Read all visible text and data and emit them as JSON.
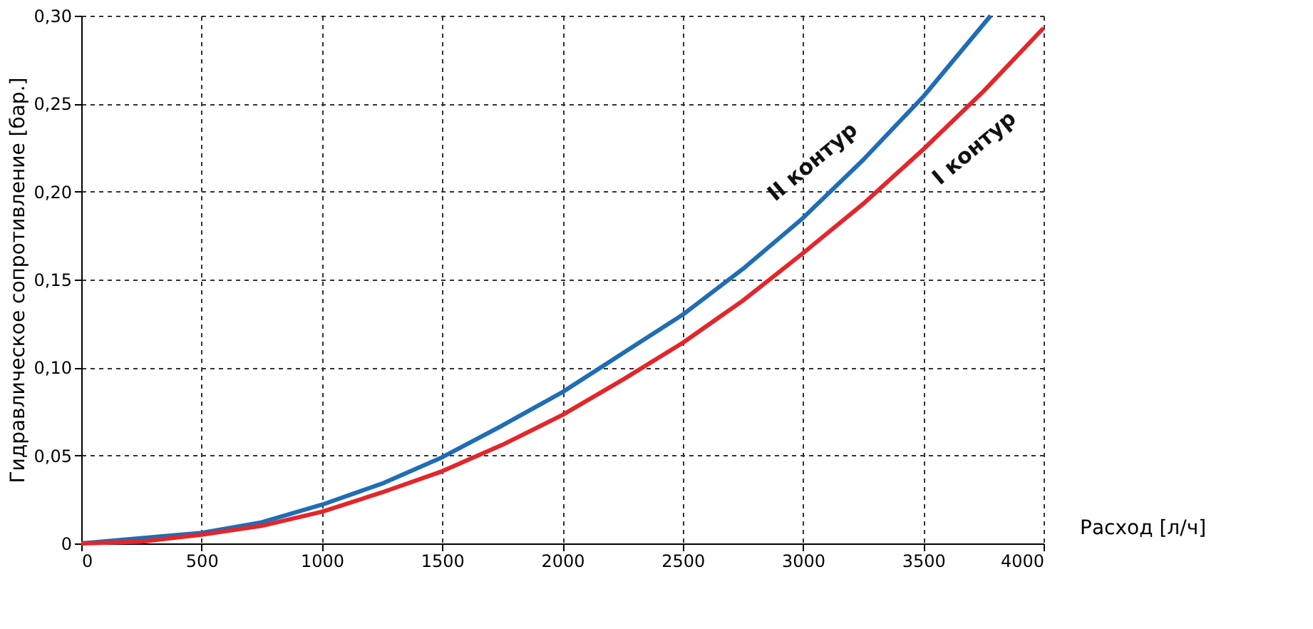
{
  "chart_data": {
    "type": "line",
    "xlabel": "Расход [л/ч]",
    "ylabel": "Гидравлическое сопротивление [бар.]",
    "xlim": [
      0,
      4000
    ],
    "xticks": [
      0,
      500,
      1000,
      1500,
      2000,
      2500,
      3000,
      3500,
      4000
    ],
    "ylim": [
      0,
      0.3
    ],
    "yticks": [
      {
        "value": 0,
        "label": "0"
      },
      {
        "value": 0.05,
        "label": "0,05"
      },
      {
        "value": 0.1,
        "label": "0,10"
      },
      {
        "value": 0.15,
        "label": "0,15"
      },
      {
        "value": 0.2,
        "label": "0,20"
      },
      {
        "value": 0.25,
        "label": "0,25"
      },
      {
        "value": 0.3,
        "label": "0,30"
      }
    ],
    "grid": true,
    "legend": false,
    "marker": "none",
    "line_style": "solid",
    "series": [
      {
        "name": "II контур",
        "color": "#1f6db5",
        "x": [
          0,
          500,
          750,
          1000,
          1250,
          1500,
          1750,
          2000,
          2250,
          2500,
          2750,
          3000,
          3250,
          3500,
          3780
        ],
        "values": [
          0,
          0.006,
          0.012,
          0.022,
          0.034,
          0.049,
          0.067,
          0.086,
          0.108,
          0.13,
          0.156,
          0.185,
          0.218,
          0.254,
          0.3
        ]
      },
      {
        "name": "I контур",
        "color": "#e3262b",
        "x": [
          0,
          250,
          500,
          750,
          1000,
          1250,
          1500,
          1750,
          2000,
          2250,
          2500,
          2750,
          3000,
          3250,
          3500,
          3750,
          4000
        ],
        "values": [
          0,
          0.001,
          0.005,
          0.01,
          0.018,
          0.029,
          0.041,
          0.056,
          0.073,
          0.093,
          0.114,
          0.138,
          0.165,
          0.193,
          0.224,
          0.257,
          0.293
        ]
      }
    ]
  }
}
